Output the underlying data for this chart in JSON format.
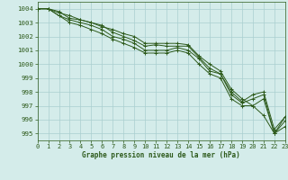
{
  "background_color": "#d4ecea",
  "grid_color": "#aacfcf",
  "line_color": "#2d5a1b",
  "xlabel": "Graphe pression niveau de la mer (hPa)",
  "xlim": [
    0,
    23
  ],
  "ylim": [
    994.5,
    1004.5
  ],
  "yticks": [
    995,
    996,
    997,
    998,
    999,
    1000,
    1001,
    1002,
    1003,
    1004
  ],
  "xticks": [
    0,
    1,
    2,
    3,
    4,
    5,
    6,
    7,
    8,
    9,
    10,
    11,
    12,
    13,
    14,
    15,
    16,
    17,
    18,
    19,
    20,
    21,
    22,
    23
  ],
  "series": [
    [
      1004.0,
      1004.0,
      1003.7,
      1003.5,
      1003.2,
      1003.0,
      1002.7,
      1002.5,
      1002.2,
      1002.0,
      1001.5,
      1001.5,
      1001.5,
      1001.5,
      1001.4,
      1000.6,
      1000.0,
      999.5,
      998.2,
      997.5,
      997.0,
      996.3,
      995.0,
      996.2
    ],
    [
      1004.0,
      1004.0,
      1003.8,
      1003.3,
      1003.2,
      1003.0,
      1002.8,
      1002.3,
      1002.0,
      1001.7,
      1001.3,
      1001.4,
      1001.3,
      1001.3,
      1001.3,
      1000.5,
      999.7,
      999.3,
      998.0,
      997.3,
      997.8,
      998.0,
      995.3,
      996.2
    ],
    [
      1004.0,
      1004.0,
      1003.5,
      1003.2,
      1003.0,
      1002.8,
      1002.5,
      1002.0,
      1001.8,
      1001.5,
      1001.0,
      1001.0,
      1001.0,
      1001.2,
      1001.0,
      1000.4,
      999.5,
      999.3,
      997.8,
      997.2,
      997.5,
      997.8,
      995.0,
      995.9
    ],
    [
      1004.0,
      1004.0,
      1003.5,
      1003.0,
      1002.8,
      1002.5,
      1002.2,
      1001.8,
      1001.5,
      1001.2,
      1000.8,
      1000.8,
      1000.8,
      1001.0,
      1000.8,
      1000.0,
      999.3,
      999.0,
      997.5,
      997.0,
      997.0,
      997.5,
      995.0,
      995.5
    ]
  ],
  "tick_fontsize": 5.0,
  "xlabel_fontsize": 5.5,
  "linewidth": 0.7,
  "markersize": 2.5
}
